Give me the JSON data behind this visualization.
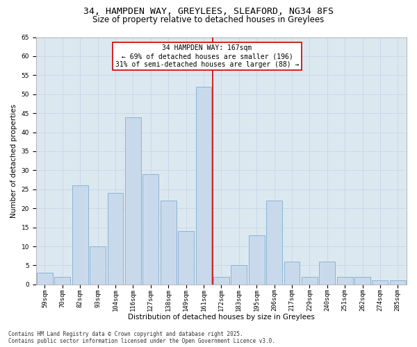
{
  "title_line1": "34, HAMPDEN WAY, GREYLEES, SLEAFORD, NG34 8FS",
  "title_line2": "Size of property relative to detached houses in Greylees",
  "xlabel": "Distribution of detached houses by size in Greylees",
  "ylabel": "Number of detached properties",
  "categories": [
    "59sqm",
    "70sqm",
    "82sqm",
    "93sqm",
    "104sqm",
    "116sqm",
    "127sqm",
    "138sqm",
    "149sqm",
    "161sqm",
    "172sqm",
    "183sqm",
    "195sqm",
    "206sqm",
    "217sqm",
    "229sqm",
    "240sqm",
    "251sqm",
    "262sqm",
    "274sqm",
    "285sqm"
  ],
  "values": [
    3,
    2,
    26,
    10,
    24,
    44,
    29,
    22,
    14,
    52,
    2,
    5,
    13,
    22,
    6,
    2,
    6,
    2,
    2,
    1,
    1
  ],
  "bar_color": "#c9d9ec",
  "bar_edge_color": "#8ab4d4",
  "highlight_index": 9,
  "annotation_line1": "34 HAMPDEN WAY: 167sqm",
  "annotation_line2": "← 69% of detached houses are smaller (196)",
  "annotation_line3": "31% of semi-detached houses are larger (88) →",
  "annotation_box_color": "#ffffff",
  "annotation_box_edge": "#cc0000",
  "vline_color": "#cc0000",
  "ylim": [
    0,
    65
  ],
  "yticks": [
    0,
    5,
    10,
    15,
    20,
    25,
    30,
    35,
    40,
    45,
    50,
    55,
    60,
    65
  ],
  "grid_color": "#c8d4e8",
  "background_color": "#dce8f0",
  "footer_line1": "Contains HM Land Registry data © Crown copyright and database right 2025.",
  "footer_line2": "Contains public sector information licensed under the Open Government Licence v3.0.",
  "title_fontsize": 9.5,
  "subtitle_fontsize": 8.5,
  "axis_label_fontsize": 7.5,
  "tick_fontsize": 6.5,
  "annotation_fontsize": 7,
  "footer_fontsize": 5.5
}
